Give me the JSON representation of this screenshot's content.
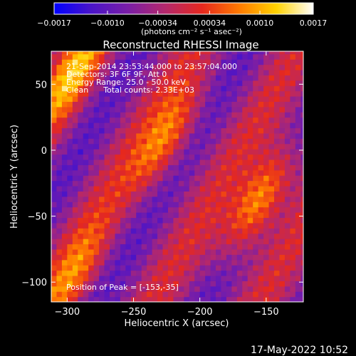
{
  "chart_data": {
    "type": "heatmap",
    "title": "Reconstructed RHESSI Image",
    "xlabel": "Heliocentric X (arcsec)",
    "ylabel": "Heliocentric Y (arcsec)",
    "xlim": [
      -312,
      -122
    ],
    "ylim": [
      -115,
      75
    ],
    "x_ticks": [
      -300,
      -250,
      -200,
      -150
    ],
    "x_tick_labels": [
      "−300",
      "−250",
      "−200",
      "−150"
    ],
    "y_ticks": [
      50,
      0,
      -50,
      -100
    ],
    "y_tick_labels": [
      "50",
      "0",
      "−50",
      "−100"
    ],
    "colorbar": {
      "min": -0.0017,
      "max": 0.0017,
      "ticks": [
        -0.0017,
        -0.001,
        -0.00034,
        0.00034,
        0.001,
        0.0017
      ],
      "tick_labels": [
        "−0.0017",
        "−0.0010",
        "−0.00034",
        "0.00034",
        "0.0010",
        "0.0017"
      ],
      "unit_label": "(photons cm⁻² s⁻¹ asec⁻²)",
      "colormap": [
        "#0000ff",
        "#4a14c8",
        "#7a1ea6",
        "#b4286c",
        "#e6281e",
        "#ff7a00",
        "#ffd200",
        "#ffffff"
      ]
    },
    "info_lines": [
      "21-Sep-2014 23:53:44.000 to 23:57:04.000",
      "Detectors: 3F 6F 9F, Att 0",
      "Energy Range: 25.0 - 50.0 keV",
      "Clean      Total counts: 2.33E+03"
    ],
    "peak_label": "Position of Peak = [-153,-35]",
    "peak": [
      -153,
      -35
    ],
    "lobes": [
      {
        "x": -155,
        "y": -38,
        "amplitude": 0.0017
      },
      {
        "x": -225,
        "y": 8,
        "amplitude": 0.00115
      },
      {
        "x": -295,
        "y": 58,
        "amplitude": 0.0012
      },
      {
        "x": -295,
        "y": -95,
        "amplitude": 0.0009
      }
    ],
    "ridge_angle_deg": 30
  },
  "timestamp": "17-May-2022 10:52"
}
